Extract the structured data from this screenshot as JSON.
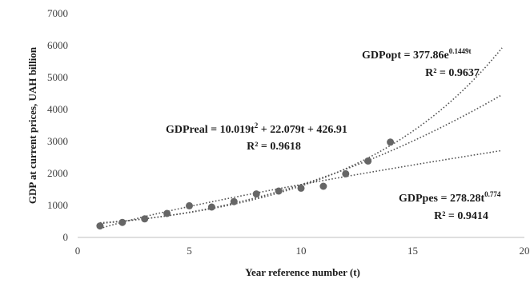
{
  "chart_data": {
    "type": "scatter",
    "xlabel": "Year reference number (t)",
    "ylabel": "GDP  at current prices, UAH billion",
    "xlim": [
      0,
      20
    ],
    "ylim": [
      0,
      7000
    ],
    "xticks": [
      0,
      5,
      10,
      15,
      20
    ],
    "yticks": [
      0,
      1000,
      2000,
      3000,
      4000,
      5000,
      6000,
      7000
    ],
    "grid": false,
    "marker_color": "#666666",
    "trend_color": "#555555",
    "series": [
      {
        "type": "scatter",
        "x": [
          1,
          2,
          3,
          4,
          5,
          6,
          7,
          8,
          9,
          10,
          11,
          12,
          13,
          14
        ],
        "values": [
          360,
          470,
          580,
          750,
          990,
          950,
          1120,
          1360,
          1450,
          1540,
          1600,
          1990,
          2390,
          2980
        ]
      }
    ],
    "trendlines": [
      {
        "kind": "exponential",
        "a": 377.86,
        "b": 0.1449,
        "x_range": [
          1,
          19
        ]
      },
      {
        "kind": "polynomial",
        "coeffs": [
          10.019,
          22.079,
          426.91
        ],
        "x_range": [
          1,
          19
        ]
      },
      {
        "kind": "power",
        "a": 278.28,
        "b": 0.774,
        "x_range": [
          1,
          19
        ]
      }
    ],
    "annotations": [
      {
        "label": "GDPopt = 377.86e",
        "sup": "0.1449t",
        "r2": "R² = 0.9637"
      },
      {
        "label": "GDPreal = 10.019t",
        "sup": "2",
        "rest": " + 22.079t + 426.91",
        "r2": "R² = 0.9618"
      },
      {
        "label": "GDPpes = 278.28t",
        "sup": "0.774",
        "r2": "R² = 0.9414"
      }
    ]
  }
}
